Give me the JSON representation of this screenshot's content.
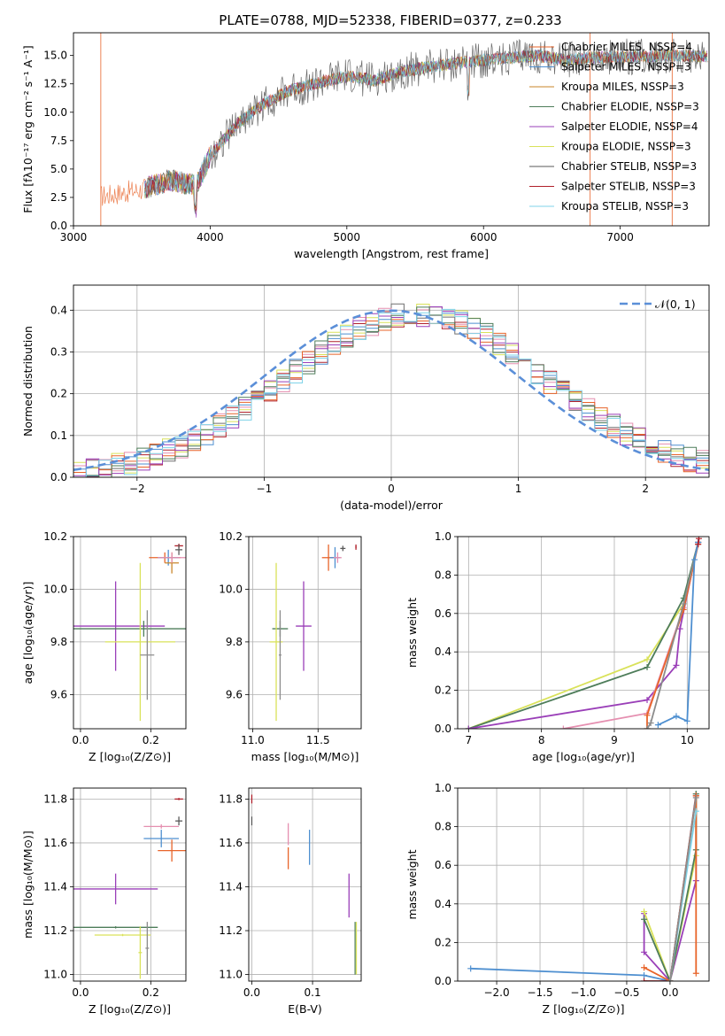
{
  "figure_title": "PLATE=0788, MJD=52338, FIBERID=0377, z=0.233",
  "colors": [
    "#6f6f6f",
    "#d62728",
    "#2ca02c",
    "#e377c2",
    "#1f77b4",
    "#d4dc47",
    "#8c8c8c",
    "#e8642a",
    "#17becf"
  ],
  "chart_data": [
    {
      "id": "spectrum",
      "type": "line",
      "title": "PLATE=0788, MJD=52338, FIBERID=0377, z=0.233",
      "xlabel": "wavelength [Angstrom, rest frame]",
      "ylabel": "Flux [fλ10⁻¹⁷ erg cm⁻² s⁻¹ A⁻¹]",
      "xlim": [
        3000,
        7650
      ],
      "ylim": [
        0,
        17
      ],
      "xticks": [
        "3000",
        "4000",
        "5000",
        "6000",
        "7000"
      ],
      "yticks": [
        "0.0",
        "2.5",
        "5.0",
        "7.5",
        "10.0",
        "12.5",
        "15.0"
      ],
      "legend_position": "right",
      "series": [
        {
          "name": "Chabrier MILES, NSSP=4",
          "color": "#e8642a"
        },
        {
          "name": "Salpeter MILES, NSSP=3",
          "color": "#4e8fd0"
        },
        {
          "name": "Kroupa MILES, NSSP=3",
          "color": "#c9862a"
        },
        {
          "name": "Chabrier ELODIE, NSSP=3",
          "color": "#4e7d5a"
        },
        {
          "name": "Salpeter ELODIE, NSSP=4",
          "color": "#9a3fb8"
        },
        {
          "name": "Kroupa ELODIE, NSSP=3",
          "color": "#d9e25a"
        },
        {
          "name": "Chabrier STELIB, NSSP=3",
          "color": "#5a5a5a"
        },
        {
          "name": "Salpeter STELIB, NSSP=3",
          "color": "#b0202a"
        },
        {
          "name": "Kroupa STELIB, NSSP=3",
          "color": "#7fd3e8"
        }
      ],
      "continuum": [
        [
          3200,
          2.6
        ],
        [
          3500,
          3.2
        ],
        [
          3700,
          4.0
        ],
        [
          3900,
          3.6
        ],
        [
          4000,
          6.2
        ],
        [
          4200,
          9.0
        ],
        [
          4400,
          10.8
        ],
        [
          4600,
          12.0
        ],
        [
          4800,
          12.6
        ],
        [
          5000,
          13.2
        ],
        [
          5200,
          12.8
        ],
        [
          5400,
          13.6
        ],
        [
          5600,
          14.0
        ],
        [
          5800,
          14.3
        ],
        [
          6000,
          14.6
        ],
        [
          6200,
          14.8
        ],
        [
          6400,
          15.0
        ],
        [
          6600,
          14.6
        ],
        [
          6800,
          14.8
        ],
        [
          7000,
          14.9
        ],
        [
          7200,
          14.9
        ],
        [
          7400,
          15.0
        ],
        [
          7650,
          14.9
        ]
      ]
    },
    {
      "id": "residuals",
      "type": "line",
      "xlabel": "(data-model)/error",
      "ylabel": "Normed distribution",
      "xlim": [
        -2.5,
        2.5
      ],
      "ylim": [
        0,
        0.46
      ],
      "xticks": [
        "−2",
        "−1",
        "0",
        "1",
        "2"
      ],
      "yticks": [
        "0.0",
        "0.1",
        "0.2",
        "0.3",
        "0.4"
      ],
      "grid": true,
      "legend": "𝒩(0, 1)",
      "legend_position": "top-right",
      "reference_curve": "standard normal, mean 0, sigma 1",
      "histogram_shift": 0.2,
      "histogram_sigma": 1.02
    },
    {
      "id": "age_vs_z",
      "type": "scatter",
      "xlabel": "Z [log₁₀(Z/Z⊙)]",
      "ylabel": "age  [log₁₀(age/yr)]",
      "xlim": [
        -0.02,
        0.3
      ],
      "ylim": [
        9.47,
        10.2
      ],
      "xticks": [
        "0.0",
        "0.2"
      ],
      "yticks": [
        "9.6",
        "9.8",
        "10.0",
        "10.2"
      ],
      "points": [
        {
          "x": 0.24,
          "y": 10.12,
          "xerr": 0.045,
          "yerr": 0.02,
          "color": "#e8642a"
        },
        {
          "x": 0.25,
          "y": 10.12,
          "xerr": 0.03,
          "yerr": 0.03,
          "color": "#4e8fd0"
        },
        {
          "x": 0.26,
          "y": 10.1,
          "xerr": 0.02,
          "yerr": 0.04,
          "color": "#c9862a"
        },
        {
          "x": 0.26,
          "y": 10.12,
          "xerr": 0.04,
          "yerr": 0.02,
          "color": "#e58fb0"
        },
        {
          "x": 0.28,
          "y": 10.165,
          "xerr": 0.012,
          "yerr": 0.008,
          "color": "#b0202a"
        },
        {
          "x": 0.28,
          "y": 10.15,
          "xerr": 0.01,
          "yerr": 0.02,
          "color": "#5a5a5a"
        },
        {
          "x": 0.1,
          "y": 9.86,
          "xerr": 0.14,
          "yerr": 0.17,
          "color": "#9a3fb8"
        },
        {
          "x": 0.18,
          "y": 9.85,
          "xerr": 0.2,
          "yerr": 0.03,
          "color": "#4e7d5a"
        },
        {
          "x": 0.17,
          "y": 9.8,
          "xerr": 0.1,
          "yerr": 0.3,
          "color": "#d9e25a"
        },
        {
          "x": 0.19,
          "y": 9.75,
          "xerr": 0.02,
          "yerr": 0.17,
          "color": "#8c8c8c"
        }
      ]
    },
    {
      "id": "age_vs_mass",
      "type": "scatter",
      "xlabel": "mass [log₁₀(M/M⊙)]",
      "ylim": [
        9.47,
        10.2
      ],
      "xlim": [
        10.97,
        11.83
      ],
      "xticks": [
        "11.0",
        "11.5"
      ],
      "yticks": [
        "9.6",
        "9.8",
        "10.0",
        "10.2"
      ],
      "points": [
        {
          "x": 11.58,
          "y": 10.12,
          "xerr": 0.05,
          "yerr": 0.05,
          "color": "#e8642a"
        },
        {
          "x": 11.63,
          "y": 10.12,
          "xerr": 0.04,
          "yerr": 0.04,
          "color": "#4e8fd0"
        },
        {
          "x": 11.65,
          "y": 10.12,
          "xerr": 0.03,
          "yerr": 0.02,
          "color": "#e58fb0"
        },
        {
          "x": 11.69,
          "y": 10.155,
          "xerr": 0.02,
          "yerr": 0.01,
          "color": "#5a5a5a"
        },
        {
          "x": 11.79,
          "y": 10.16,
          "xerr": 0.005,
          "yerr": 0.01,
          "color": "#b0202a"
        },
        {
          "x": 11.39,
          "y": 9.86,
          "xerr": 0.06,
          "yerr": 0.17,
          "color": "#9a3fb8"
        },
        {
          "x": 11.21,
          "y": 9.85,
          "xerr": 0.06,
          "yerr": 0.03,
          "color": "#4e7d5a"
        },
        {
          "x": 11.18,
          "y": 9.8,
          "xerr": 0.05,
          "yerr": 0.3,
          "color": "#d9e25a"
        },
        {
          "x": 11.21,
          "y": 9.75,
          "xerr": 0.01,
          "yerr": 0.17,
          "color": "#8c8c8c"
        }
      ]
    },
    {
      "id": "weight_vs_age",
      "type": "line",
      "xlabel": "age  [log₁₀(age/yr)]",
      "ylabel": "mass weight",
      "xlim": [
        6.85,
        10.3
      ],
      "ylim": [
        0,
        1
      ],
      "xticks": [
        "7",
        "8",
        "9",
        "10"
      ],
      "yticks": [
        "0.0",
        "0.2",
        "0.4",
        "0.6",
        "0.8",
        "1.0"
      ],
      "grid": true,
      "series": [
        {
          "color": "#d9e25a",
          "points": [
            [
              7.0,
              0.0
            ],
            [
              9.45,
              0.36
            ],
            [
              9.95,
              0.65
            ],
            [
              10.15,
              0.97
            ]
          ]
        },
        {
          "color": "#4e7d5a",
          "points": [
            [
              7.0,
              0.0
            ],
            [
              9.45,
              0.32
            ],
            [
              9.95,
              0.68
            ],
            [
              10.15,
              0.97
            ]
          ]
        },
        {
          "color": "#9a3fb8",
          "points": [
            [
              7.0,
              0.0
            ],
            [
              9.45,
              0.15
            ],
            [
              9.85,
              0.33
            ],
            [
              9.9,
              0.52
            ],
            [
              10.15,
              0.97
            ]
          ]
        },
        {
          "color": "#e58fb0",
          "points": [
            [
              8.3,
              0.0
            ],
            [
              9.45,
              0.08
            ],
            [
              9.95,
              0.63
            ],
            [
              10.15,
              0.97
            ]
          ]
        },
        {
          "color": "#e8642a",
          "points": [
            [
              9.45,
              0.0
            ],
            [
              9.45,
              0.07
            ],
            [
              9.95,
              0.62
            ],
            [
              10.15,
              0.96
            ]
          ]
        },
        {
          "color": "#8c8c8c",
          "points": [
            [
              9.45,
              0.0
            ],
            [
              9.5,
              0.03
            ],
            [
              9.95,
              0.65
            ],
            [
              10.15,
              0.97
            ]
          ]
        },
        {
          "color": "#4e8fd0",
          "points": [
            [
              9.6,
              0.02
            ],
            [
              9.85,
              0.065
            ],
            [
              10.0,
              0.04
            ],
            [
              10.1,
              0.88
            ],
            [
              10.15,
              0.97
            ]
          ]
        },
        {
          "color": "#b0202a",
          "points": [
            [
              10.15,
              0.96
            ],
            [
              10.16,
              0.99
            ]
          ]
        }
      ]
    },
    {
      "id": "mass_vs_z",
      "type": "scatter",
      "xlabel": "Z [log₁₀(Z/Z⊙)]",
      "ylabel": "mass [log₁₀(M/M⊙)]",
      "xlim": [
        -0.02,
        0.3
      ],
      "ylim": [
        10.97,
        11.85
      ],
      "xticks": [
        "0.0",
        "0.2"
      ],
      "yticks": [
        "11.0",
        "11.2",
        "11.4",
        "11.6",
        "11.8"
      ],
      "points": [
        {
          "x": 0.28,
          "y": 11.8,
          "xerr": 0.012,
          "yerr": 0.005,
          "color": "#b0202a"
        },
        {
          "x": 0.28,
          "y": 11.7,
          "xerr": 0.01,
          "yerr": 0.02,
          "color": "#5a5a5a"
        },
        {
          "x": 0.23,
          "y": 11.675,
          "xerr": 0.05,
          "yerr": 0.01,
          "color": "#e58fb0"
        },
        {
          "x": 0.23,
          "y": 11.62,
          "xerr": 0.05,
          "yerr": 0.04,
          "color": "#4e8fd0"
        },
        {
          "x": 0.26,
          "y": 11.565,
          "xerr": 0.04,
          "yerr": 0.05,
          "color": "#e8642a"
        },
        {
          "x": 0.1,
          "y": 11.39,
          "xerr": 0.12,
          "yerr": 0.07,
          "color": "#9a3fb8"
        },
        {
          "x": 0.1,
          "y": 11.215,
          "xerr": 0.12,
          "yerr": 0.005,
          "color": "#4e7d5a"
        },
        {
          "x": 0.12,
          "y": 11.18,
          "xerr": 0.08,
          "yerr": 0.005,
          "color": "#d9e25a"
        },
        {
          "x": 0.17,
          "y": 11.1,
          "xerr": 0.005,
          "yerr": 0.12,
          "color": "#d9e25a"
        },
        {
          "x": 0.19,
          "y": 11.12,
          "xerr": 0.005,
          "yerr": 0.12,
          "color": "#8c8c8c"
        }
      ]
    },
    {
      "id": "mass_vs_ebv",
      "type": "scatter",
      "xlabel": "E(B-V)",
      "xlim": [
        -0.005,
        0.18
      ],
      "ylim": [
        10.97,
        11.85
      ],
      "xticks": [
        "0.0",
        "0.1"
      ],
      "yticks": [
        "11.0",
        "11.2",
        "11.4",
        "11.6",
        "11.8"
      ],
      "points": [
        {
          "x": 0.0,
          "y": 11.8,
          "xerr": 0.0,
          "yerr": 0.02,
          "color": "#b0202a"
        },
        {
          "x": 0.0,
          "y": 11.7,
          "xerr": 0.0,
          "yerr": 0.02,
          "color": "#5a5a5a"
        },
        {
          "x": 0.06,
          "y": 11.64,
          "xerr": 0.0,
          "yerr": 0.05,
          "color": "#e58fb0"
        },
        {
          "x": 0.06,
          "y": 11.53,
          "xerr": 0.0,
          "yerr": 0.05,
          "color": "#e8642a"
        },
        {
          "x": 0.095,
          "y": 11.58,
          "xerr": 0.0,
          "yerr": 0.08,
          "color": "#4e8fd0"
        },
        {
          "x": 0.16,
          "y": 11.36,
          "xerr": 0.0,
          "yerr": 0.1,
          "color": "#9a3fb8"
        },
        {
          "x": 0.17,
          "y": 11.12,
          "xerr": 0.0,
          "yerr": 0.12,
          "color": "#4e7d5a"
        },
        {
          "x": 0.172,
          "y": 11.12,
          "xerr": 0.0,
          "yerr": 0.12,
          "color": "#d9e25a"
        }
      ]
    },
    {
      "id": "weight_vs_z",
      "type": "line",
      "xlabel": "Z [log₁₀(Z/Z⊙)]",
      "ylabel": "mass weight",
      "xlim": [
        -2.45,
        0.45
      ],
      "ylim": [
        0,
        1
      ],
      "xticks": [
        "−2.0",
        "−1.5",
        "−1.0",
        "−0.5",
        "0.0"
      ],
      "yticks": [
        "0.0",
        "0.2",
        "0.4",
        "0.6",
        "0.8",
        "1.0"
      ],
      "grid": true,
      "series": [
        {
          "color": "#4e8fd0",
          "points": [
            [
              -2.3,
              0.065
            ],
            [
              -0.3,
              0.03
            ],
            [
              0.0,
              0.0
            ],
            [
              0.3,
              0.97
            ]
          ]
        },
        {
          "color": "#9a3fb8",
          "points": [
            [
              -0.3,
              0.35
            ],
            [
              -0.3,
              0.15
            ],
            [
              0.0,
              0.0
            ],
            [
              0.3,
              0.52
            ],
            [
              0.3,
              0.97
            ]
          ]
        },
        {
          "color": "#d9e25a",
          "points": [
            [
              -0.3,
              0.36
            ],
            [
              0.0,
              0.0
            ],
            [
              0.3,
              0.65
            ],
            [
              0.3,
              0.97
            ]
          ]
        },
        {
          "color": "#4e7d5a",
          "points": [
            [
              -0.3,
              0.32
            ],
            [
              0.0,
              0.0
            ],
            [
              0.3,
              0.68
            ],
            [
              0.3,
              0.97
            ]
          ]
        },
        {
          "color": "#b0202a",
          "points": [
            [
              -0.3,
              0.0
            ],
            [
              0.0,
              0.0
            ],
            [
              0.3,
              0.96
            ]
          ]
        },
        {
          "color": "#e8642a",
          "points": [
            [
              -0.3,
              0.07
            ],
            [
              0.0,
              0.0
            ],
            [
              0.3,
              0.96
            ],
            [
              0.3,
              0.04
            ]
          ]
        },
        {
          "color": "#7fd3e8",
          "points": [
            [
              0.0,
              0.0
            ],
            [
              0.3,
              0.88
            ]
          ]
        },
        {
          "color": "#8c8c8c",
          "points": [
            [
              0.0,
              0.0
            ],
            [
              0.3,
              0.95
            ]
          ]
        }
      ]
    }
  ]
}
